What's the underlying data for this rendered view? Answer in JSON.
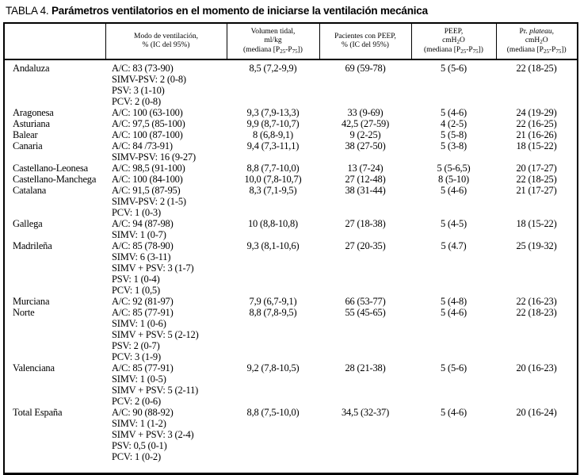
{
  "colors": {
    "text": "#000000",
    "background": "#ffffff",
    "border": "#000000"
  },
  "title": {
    "prefix": "TABLA 4. ",
    "text": "Parámetros ventilatorios en el momento de iniciarse la ventilación mecánica"
  },
  "table": {
    "columns": [
      {
        "id": "region",
        "lines": []
      },
      {
        "id": "modo",
        "lines": [
          "Modo de ventilación,",
          "% (IC del 95%)"
        ]
      },
      {
        "id": "vt",
        "lines": [
          "Volumen tidal,",
          "ml/kg",
          "(mediana [P_25_-P_75_])"
        ]
      },
      {
        "id": "peep_pct",
        "lines": [
          "Pacientes con PEEP,",
          "% (IC del 95%)"
        ]
      },
      {
        "id": "peep",
        "lines": [
          "PEEP,",
          "cmH_2_O",
          "(mediana [P_25_-P_75_])"
        ]
      },
      {
        "id": "plateau",
        "lines": [
          "Pr. *plateau*,",
          "cmH_2_O",
          "(mediana [P_25_-P_75_])"
        ]
      }
    ],
    "rows": [
      {
        "region": "Andaluza",
        "modes": [
          "A/C: 83 (73-90)",
          "SIMV-PSV: 2 (0-8)",
          "PSV: 3 (1-10)",
          "PCV: 2 (0-8)"
        ],
        "vt": "8,5 (7,2-9,9)",
        "peep_pct": "69 (59-78)",
        "peep": "5 (5-6)",
        "plateau": "22 (18-25)"
      },
      {
        "region": "Aragonesa",
        "modes": [
          "A/C: 100 (63-100)"
        ],
        "vt": "9,3 (7,9-13,3)",
        "peep_pct": "33 (9-69)",
        "peep": "5 (4-6)",
        "plateau": "24 (19-29)"
      },
      {
        "region": "Asturiana",
        "modes": [
          "A/C: 97,5 (85-100)"
        ],
        "vt": "9,9 (8,7-10,7)",
        "peep_pct": "42,5 (27-59)",
        "peep": "4 (2-5)",
        "plateau": "22 (16-25)"
      },
      {
        "region": "Balear",
        "modes": [
          "A/C: 100 (87-100)"
        ],
        "vt": "8 (6,8-9,1)",
        "peep_pct": "9 (2-25)",
        "peep": "5 (5-8)",
        "plateau": "21 (16-26)"
      },
      {
        "region": "Canaria",
        "modes": [
          "A/C: 84 /73-91)",
          "SIMV-PSV: 16 (9-27)"
        ],
        "vt": "9,4 (7,3-11,1)",
        "peep_pct": "38 (27-50)",
        "peep": "5 (3-8)",
        "plateau": "18 (15-22)"
      },
      {
        "region": "Castellano-Leonesa",
        "modes": [
          "A/C: 98,5 (91-100)"
        ],
        "vt": "8,8 (7,7-10,0)",
        "peep_pct": "13 (7-24)",
        "peep": "5 (5-6,5)",
        "plateau": "20 (17-27)"
      },
      {
        "region": "Castellano-Manchega",
        "modes": [
          "A/C: 100 (84-100)"
        ],
        "vt": "10,0 (7,8-10,7)",
        "peep_pct": "27 (12-48)",
        "peep": "8 (5-10)",
        "plateau": "22 (18-25)"
      },
      {
        "region": "Catalana",
        "modes": [
          "A/C: 91,5 (87-95)",
          "SIMV-PSV: 2 (1-5)",
          "PCV: 1 (0-3)"
        ],
        "vt": "8,3 (7,1-9,5)",
        "peep_pct": "38 (31-44)",
        "peep": "5 (4-6)",
        "plateau": "21 (17-27)"
      },
      {
        "region": "Gallega",
        "modes": [
          "A/C: 94 (87-98)",
          "SIMV: 1 (0-7)"
        ],
        "vt": "10 (8,8-10,8)",
        "peep_pct": "27 (18-38)",
        "peep": "5 (4-5)",
        "plateau": "18 (15-22)"
      },
      {
        "region": "Madrileña",
        "modes": [
          "A/C: 85 (78-90)",
          "SIMV: 6 (3-11)",
          "SIMV + PSV: 3 (1-7)",
          "PSV: 1 (0-4)",
          "PCV: 1 (0,5)"
        ],
        "vt": "9,3 (8,1-10,6)",
        "peep_pct": "27 (20-35)",
        "peep": "5 (4.7)",
        "plateau": "25 (19-32)"
      },
      {
        "region": "Murciana",
        "modes": [
          "A/C: 92 (81-97)"
        ],
        "vt": "7,9 (6,7-9,1)",
        "peep_pct": "66 (53-77)",
        "peep": "5 (4-8)",
        "plateau": "22 (16-23)"
      },
      {
        "region": "Norte",
        "modes": [
          "A/C: 85 (77-91)",
          "SIMV: 1 (0-6)",
          "SIMV + PSV: 5 (2-12)",
          "PSV: 2 (0-7)",
          "PCV: 3 (1-9)"
        ],
        "vt": "8,8 (7,8-9,5)",
        "peep_pct": "55 (45-65)",
        "peep": "5 (4-6)",
        "plateau": "22 (18-23)"
      },
      {
        "region": "Valenciana",
        "modes": [
          "A/C: 85 (77-91)",
          "SIMV: 1 (0-5)",
          "SIMV + PSV: 5 (2-11)",
          "PCV: 2 (0-6)"
        ],
        "vt": "9,2 (7,8-10,5)",
        "peep_pct": "28 (21-38)",
        "peep": "5 (5-6)",
        "plateau": "20 (16-23)"
      },
      {
        "region": "Total España",
        "modes": [
          "A/C: 90 (88-92)",
          "SIMV: 1 (1-2)",
          "SIMV + PSV: 3 (2-4)",
          "PSV: 0,5 (0-1)",
          "PCV: 1 (0-2)"
        ],
        "vt": "8,8 (7,5-10,0)",
        "peep_pct": "34,5 (32-37)",
        "peep": "5 (4-6)",
        "plateau": "20 (16-24)"
      }
    ]
  }
}
